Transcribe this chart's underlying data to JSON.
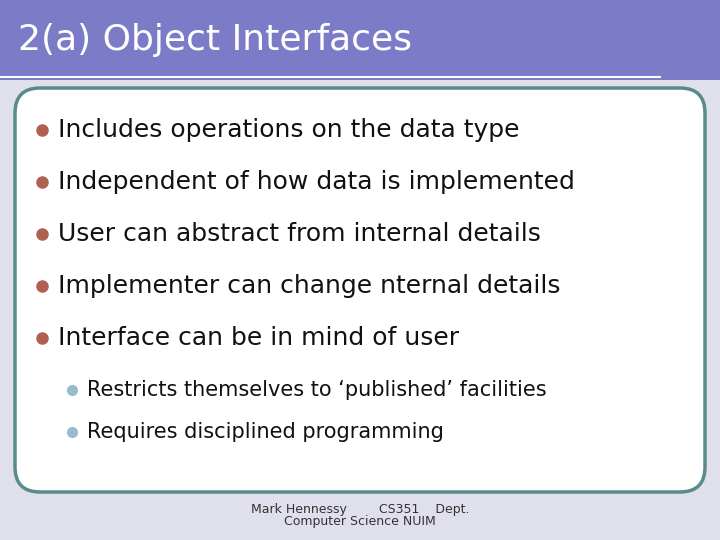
{
  "title": "2(a) Object Interfaces",
  "title_bg_color": "#7b7bc8",
  "title_text_color": "#ffffff",
  "title_fontsize": 26,
  "body_bg_color": "#ffffff",
  "slide_bg_color": "#e0e0ec",
  "border_color": "#5a8a8a",
  "bullet_color": "#b06050",
  "sub_bullet_color": "#99bbcc",
  "bullet_text_color": "#111111",
  "bullet_fontsize": 18,
  "sub_bullet_fontsize": 15,
  "bullets": [
    "Includes operations on the data type",
    "Independent of how data is implemented",
    "User can abstract from internal details",
    "Implementer can change nternal details",
    "Interface can be in mind of user"
  ],
  "sub_bullets": [
    "Restricts themselves to ‘published’ facilities",
    "Requires disciplined programming"
  ],
  "footer_line1": "Mark Hennessy        CS351    Dept.",
  "footer_line2": "Computer Science NUIM",
  "footer_fontsize": 9
}
